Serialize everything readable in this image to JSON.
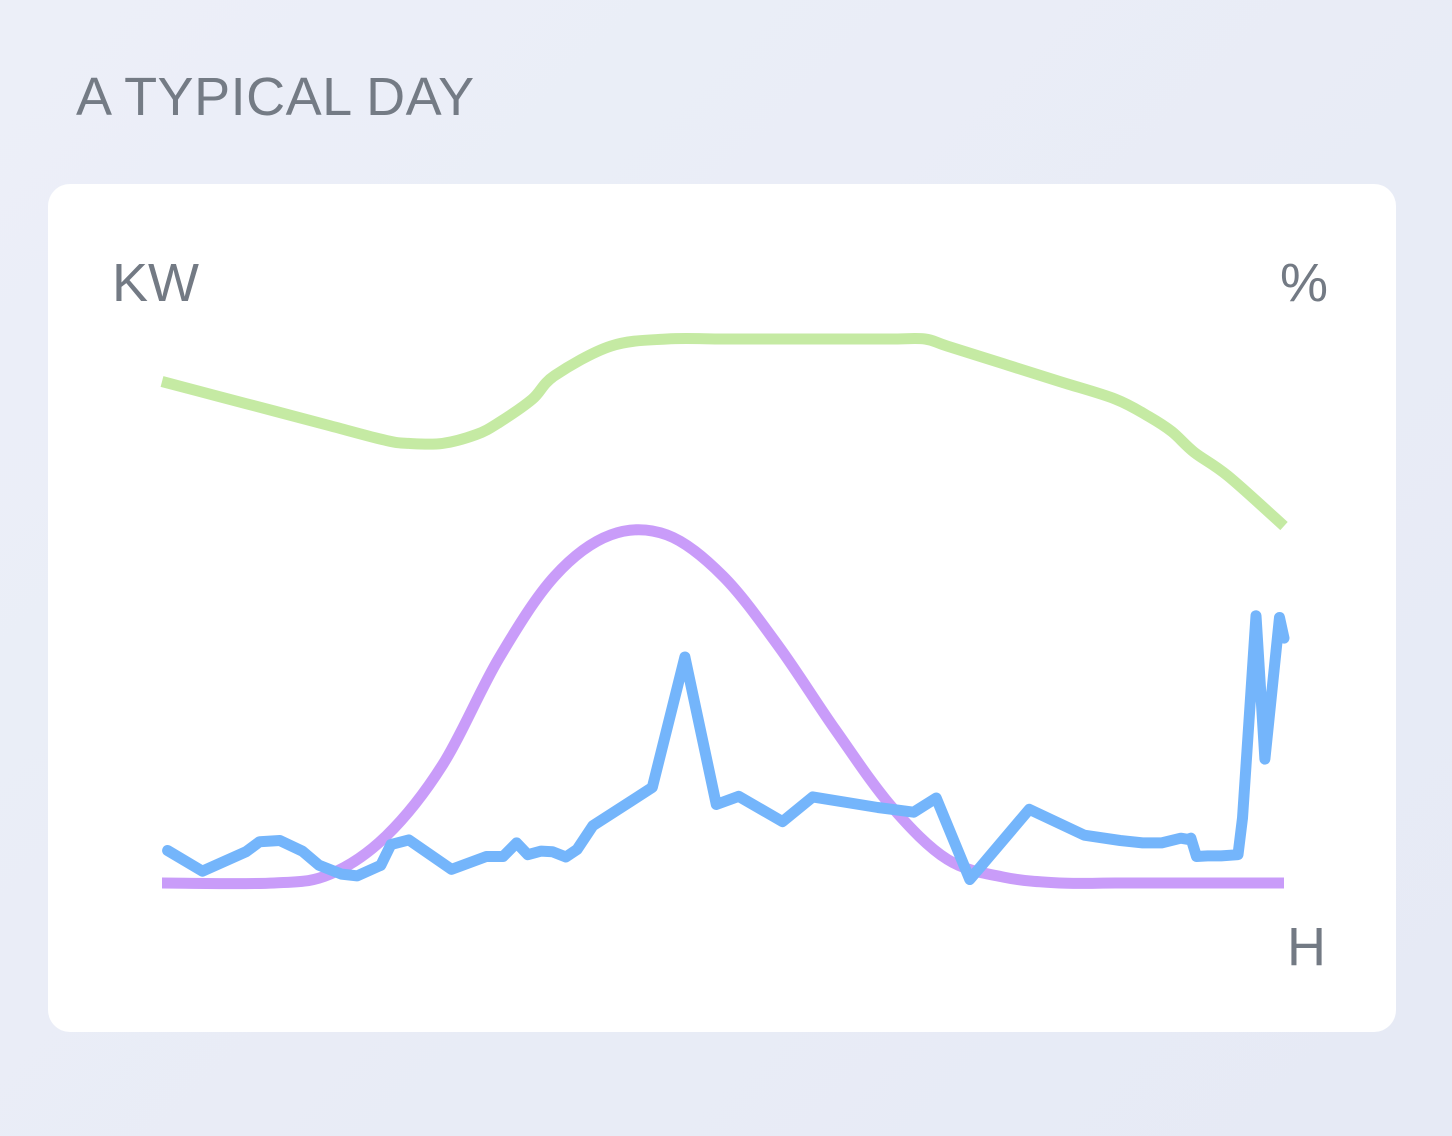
{
  "title": "A TYPICAL DAY",
  "colors": {
    "background": "#e9ecf6",
    "card": "#ffffff",
    "text": "#747b85",
    "series_green": "#c5eaa3",
    "series_purple": "#c99cf9",
    "series_blue": "#74b5fb"
  },
  "chart_data": {
    "type": "line",
    "ylabel_left": "KW",
    "ylabel_right": "%",
    "xlabel": "H",
    "xlim": [
      0,
      100
    ],
    "ylim": [
      0,
      100
    ],
    "grid": false,
    "legend": false,
    "series": [
      {
        "color": "#c5eaa3",
        "x": [
          0,
          5,
          10,
          15,
          20,
          22,
          25,
          28,
          30,
          33,
          35,
          40,
          45,
          50,
          55,
          60,
          65,
          68,
          70,
          75,
          80,
          85,
          88,
          90,
          92,
          95,
          100
        ],
        "y": [
          85,
          82.5,
          80,
          77.5,
          75,
          74.5,
          74.5,
          76,
          78,
          82,
          86,
          91,
          92.2,
          92.2,
          92.2,
          92.2,
          92.2,
          92.2,
          91,
          88,
          85,
          82,
          79,
          76.5,
          73,
          69,
          60.5
        ]
      },
      {
        "color": "#c99cf9",
        "x": [
          0,
          10,
          15,
          20,
          25,
          30,
          35,
          40,
          45,
          50,
          55,
          60,
          65,
          70,
          75,
          80,
          85,
          90,
          95,
          100
        ],
        "y": [
          0,
          0,
          1.5,
          8,
          20,
          38,
          52,
          59,
          59,
          52,
          40,
          26,
          13,
          4,
          1,
          0,
          0,
          0,
          0,
          0
        ]
      },
      {
        "color": "#74b5fb",
        "x": [
          0.5,
          3.6,
          7.5,
          8.7,
          10.5,
          12.5,
          14,
          16,
          17.4,
          19.5,
          20.4,
          22,
          25.8,
          28.9,
          29.6,
          30.4,
          31.6,
          32.6,
          33.8,
          34.8,
          36,
          37,
          38.4,
          43.7,
          46.6,
          49.4,
          51.4,
          55.3,
          58,
          63.8,
          67,
          69,
          72,
          77.3,
          82.2,
          85.4,
          87.4,
          89.1,
          90.8,
          91.4,
          91.7,
          92.2,
          93.2,
          94.4,
          95.9,
          96.3,
          97.5,
          98.3,
          99.6,
          100
        ],
        "y": [
          5.5,
          2,
          5.3,
          7,
          7.2,
          5.4,
          3,
          1.5,
          1.2,
          3,
          6.5,
          7.3,
          2.3,
          4.5,
          4.5,
          4.5,
          6.8,
          4.8,
          5.4,
          5.3,
          4.4,
          5.7,
          9.7,
          16.2,
          38.3,
          13.3,
          14.7,
          10.4,
          14.6,
          12.8,
          12,
          14.4,
          0.6,
          12.5,
          8.1,
          7.2,
          6.8,
          6.8,
          7.6,
          7.4,
          7.6,
          4.5,
          4.6,
          4.6,
          4.8,
          11,
          45.3,
          21,
          45,
          41.5
        ]
      }
    ]
  }
}
